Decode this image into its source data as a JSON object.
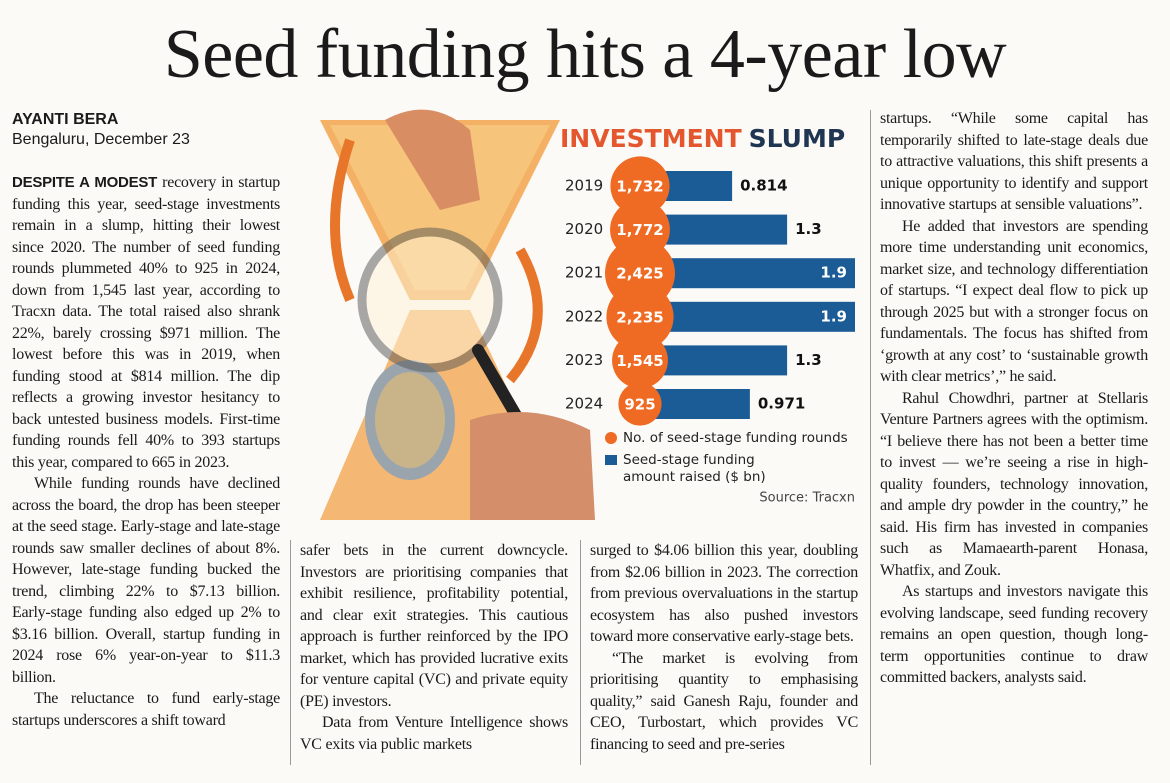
{
  "headline": "Seed funding hits a 4-year low",
  "byline": {
    "author": "AYANTI BERA",
    "dateline": "Bengaluru, December 23"
  },
  "columns": [
    {
      "lead": "DESPITE A MODEST",
      "paragraphs": [
        " recovery in startup funding this year, seed-stage investments remain in a slump, hitting their lowest since 2020. The number of seed funding rounds plummeted 40% to 925 in 2024, down from 1,545 last year, according to Tracxn data. The total raised also shrank 22%, barely crossing $971 million. The lowest before this was in 2019, when funding stood at $814 million. The dip reflects a growing investor hesitancy to back untested business models. First-time funding rounds fell 40% to 393 startups this year, compared to 665 in 2023.",
        "While funding rounds have declined across the board, the drop has been steeper at the seed stage. Early-stage and late-stage rounds saw smaller declines of about 8%. However, late-stage funding bucked the trend, climbing 22% to $7.13 billion. Early-stage funding also edged up 2% to $3.16 billion. Overall, startup funding in 2024 rose 6% year-on-year to $11.3 billion.",
        "The reluctance to fund early-stage startups underscores a shift toward"
      ]
    },
    {
      "paragraphs": [
        "safer bets in the current downcycle. Investors are prioritising companies that exhibit resilience, profitability potential, and clear exit strategies. This cautious approach is further reinforced by the IPO market, which has provided lucrative exits for venture capital (VC) and private equity (PE) investors.",
        "Data from Venture Intelligence shows VC exits via public markets"
      ]
    },
    {
      "paragraphs": [
        "surged to $4.06 billion this year, doubling from $2.06 billion in 2023. The correction from previous overvaluations in the startup ecosystem has also pushed investors toward more conservative early-stage bets.",
        "“The market is evolving from prioritising quantity to emphasising quality,” said Ganesh Raju, founder and CEO, Turbostart, which provides VC financing to seed and pre-series"
      ]
    },
    {
      "paragraphs": [
        "startups. “While some capital has temporarily shifted to late-stage deals due to attractive valuations, this shift presents a unique opportunity to identify and support innovative startups at sensible valuations”.",
        "He added that investors are spending more time understanding unit economics, market size, and technology differentiation of startups. “I expect deal flow to pick up through 2025 but with a stronger focus on fundamentals. The focus has shifted from ‘growth at any cost’ to ‘sustainable growth with clear metrics’,” he said.",
        "Rahul Chowdhri, partner at Stellaris Venture Partners agrees with the optimism. “I believe there has not been a better time to invest — we’re seeing a rise in high-quality founders, technology innovation, and ample dry powder in the country,” he said. His firm has invested in companies such as Mamaearth-parent Honasa, Whatfix, and Zouk.",
        "As startups and investors navigate this evolving landscape, seed funding recovery remains an open question, though long-term opportunities continue to draw committed backers, analysts said."
      ]
    }
  ],
  "chart_data": {
    "type": "bar",
    "title": [
      "INVESTMENT",
      "SLUMP"
    ],
    "title_colors": [
      "#e4572e",
      "#1f3552"
    ],
    "categories": [
      "2019",
      "2020",
      "2021",
      "2022",
      "2023",
      "2024"
    ],
    "series": [
      {
        "name": "No. of seed-stage funding rounds",
        "color": "#ef6a23",
        "values": [
          1732,
          1772,
          2425,
          2235,
          1545,
          925
        ],
        "value_labels": [
          "1,732",
          "1,772",
          "2,425",
          "2,235",
          "1,545",
          "925"
        ]
      },
      {
        "name": "Seed-stage funding amount raised ($ bn)",
        "color": "#1b5b96",
        "values": [
          0.814,
          1.3,
          1.9,
          1.9,
          1.3,
          0.971
        ]
      }
    ],
    "source": "Source: Tracxn"
  }
}
